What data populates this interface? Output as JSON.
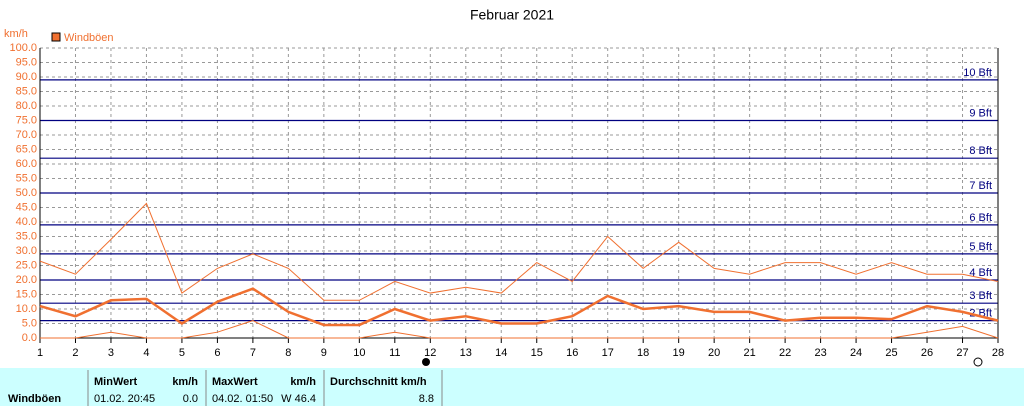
{
  "chart_data": {
    "type": "line",
    "title": "Februar 2021",
    "y_unit": "km/h",
    "x": [
      1,
      2,
      3,
      4,
      5,
      6,
      7,
      8,
      9,
      10,
      11,
      12,
      13,
      14,
      15,
      16,
      17,
      18,
      19,
      20,
      21,
      22,
      23,
      24,
      25,
      26,
      27,
      28
    ],
    "xlim": [
      1,
      28
    ],
    "xticks": [
      1,
      2,
      3,
      4,
      5,
      6,
      7,
      8,
      9,
      10,
      11,
      12,
      13,
      14,
      15,
      16,
      17,
      18,
      19,
      20,
      21,
      22,
      23,
      24,
      25,
      26,
      27,
      28
    ],
    "ylim": [
      0,
      100
    ],
    "yticks": [
      {
        "value": 0,
        "label": "0.0"
      },
      {
        "value": 5,
        "label": "5.0"
      },
      {
        "value": 10,
        "label": "10.0"
      },
      {
        "value": 15,
        "label": "15.0"
      },
      {
        "value": 20,
        "label": "20.0"
      },
      {
        "value": 25,
        "label": "25.0"
      },
      {
        "value": 30,
        "label": "30.0"
      },
      {
        "value": 35,
        "label": "35.0"
      },
      {
        "value": 40,
        "label": "40.0"
      },
      {
        "value": 45,
        "label": "45.0"
      },
      {
        "value": 50,
        "label": "50.0"
      },
      {
        "value": 55,
        "label": "55.0"
      },
      {
        "value": 60,
        "label": "60.0"
      },
      {
        "value": 65,
        "label": "65.0"
      },
      {
        "value": 70,
        "label": "70.0"
      },
      {
        "value": 75,
        "label": "75.0"
      },
      {
        "value": 80,
        "label": "80.0"
      },
      {
        "value": 85,
        "label": "85.0"
      },
      {
        "value": 90,
        "label": "90.0"
      },
      {
        "value": 95,
        "label": "95.0"
      },
      {
        "value": 100,
        "label": "100.0"
      }
    ],
    "grid": true,
    "beaufort": [
      {
        "value": 6,
        "label": "2 Bft"
      },
      {
        "value": 12,
        "label": "3 Bft"
      },
      {
        "value": 20,
        "label": "4 Bft"
      },
      {
        "value": 29,
        "label": "5 Bft"
      },
      {
        "value": 39,
        "label": "6 Bft"
      },
      {
        "value": 50,
        "label": "7 Bft"
      },
      {
        "value": 62,
        "label": "8 Bft"
      },
      {
        "value": 75,
        "label": "9 Bft"
      },
      {
        "value": 89,
        "label": "10 Bft"
      }
    ],
    "beaufort_color": "#000080",
    "series": [
      {
        "name": "Windböen",
        "color": "#f07030",
        "values": [
          11,
          7.5,
          13,
          13.5,
          5,
          12.5,
          17,
          9,
          4.5,
          4.5,
          10,
          6,
          7.5,
          5,
          5,
          7.5,
          14.5,
          10,
          11,
          9,
          9,
          6,
          7,
          7,
          6.5,
          11,
          9,
          6
        ],
        "max": [
          26.5,
          22,
          34,
          46.4,
          15.5,
          24,
          29,
          24,
          13,
          13,
          19.5,
          15.5,
          17.5,
          15.5,
          26,
          19.5,
          35,
          24,
          33,
          24,
          22,
          26,
          26,
          22,
          26,
          22,
          22,
          19.5
        ],
        "min": [
          0,
          0,
          2,
          0,
          0,
          2,
          6,
          0,
          0,
          0,
          2,
          0,
          0,
          0,
          0,
          0,
          0,
          0,
          0,
          0,
          0,
          0,
          0,
          0,
          0,
          2,
          4,
          0
        ]
      }
    ]
  },
  "table": {
    "row_label": "Windböen",
    "columns": [
      {
        "header": "MinWert",
        "unit": "km/h",
        "time": "01.02.  20:45",
        "value": "0.0"
      },
      {
        "header": "MaxWert",
        "unit": "km/h",
        "time": "04.02.  01:50",
        "value": "W 46.4"
      },
      {
        "header": "Durchschnitt km/h",
        "value": "8.8"
      }
    ]
  }
}
